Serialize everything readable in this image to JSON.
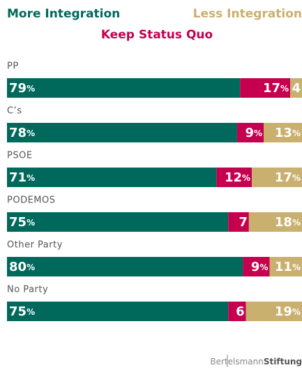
{
  "chart_data": {
    "type": "stacked-bar",
    "categories": [
      "PP",
      "C’s",
      "PSOE",
      "PODEMOS",
      "Other Party",
      "No Party"
    ],
    "xlim": [
      0,
      100
    ],
    "series": [
      {
        "name": "More Integration",
        "color": "#00695c",
        "values": [
          79,
          78,
          71,
          75,
          80,
          75
        ],
        "value_labels": [
          "79%",
          "78%",
          "71%",
          "75%",
          "80%",
          "75%"
        ]
      },
      {
        "name": "Keep Status Quo",
        "color": "#c4004f",
        "values": [
          17,
          9,
          12,
          7,
          9,
          6
        ],
        "value_labels": [
          "17%",
          "9%",
          "12%",
          "7",
          "9%",
          "6"
        ]
      },
      {
        "name": "Less Integration",
        "color": "#c9b06e",
        "values": [
          4,
          13,
          17,
          18,
          11,
          19
        ],
        "value_labels": [
          "4",
          "13%",
          "17%",
          "18%",
          "11%",
          "19%"
        ]
      }
    ]
  },
  "footer": {
    "brand_left": "Bertelsmann",
    "brand_right": "Stiftung"
  }
}
